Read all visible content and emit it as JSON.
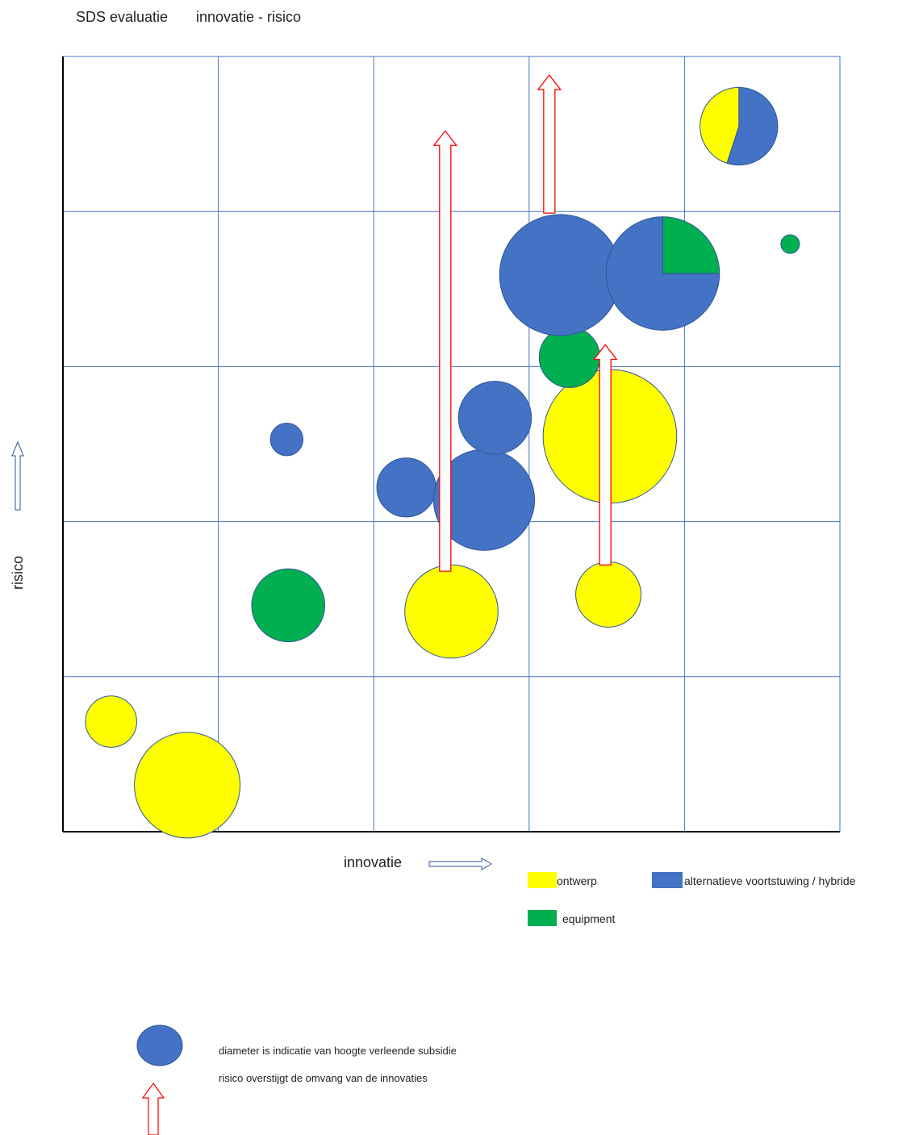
{
  "chart_data": {
    "type": "scatter",
    "subtype": "bubble",
    "title": "SDS evaluatie",
    "subtitle": "innovatie - risico",
    "xlabel": "innovatie",
    "ylabel": "risico",
    "xlim": [
      0,
      5
    ],
    "ylim": [
      0,
      5
    ],
    "grid": true,
    "colors": {
      "ontwerp": "#FFFF00",
      "alternatieve voortstuwing / hybride": "#4472C4",
      "equipment": "#00B050",
      "grid": "#4472C4",
      "arrow": "#FF0000",
      "axis": "#000000"
    },
    "legend": {
      "placement": "bottom-right",
      "entries": [
        {
          "name": "ontwerp",
          "color": "#FFFF00"
        },
        {
          "name": "alternatieve voortstuwing / hybride",
          "color": "#4472C4"
        },
        {
          "name": "equipment",
          "color": "#00B050"
        }
      ]
    },
    "bubbles": [
      {
        "x": 0.31,
        "y": 0.71,
        "diameter": 0.33,
        "category": "ontwerp"
      },
      {
        "x": 0.8,
        "y": 0.3,
        "diameter": 0.68,
        "category": "ontwerp"
      },
      {
        "x": 1.45,
        "y": 1.46,
        "diameter": 0.47,
        "category": "equipment"
      },
      {
        "x": 1.44,
        "y": 2.53,
        "diameter": 0.21,
        "category": "alternatieve voortstuwing / hybride"
      },
      {
        "x": 2.21,
        "y": 2.22,
        "diameter": 0.38,
        "category": "alternatieve voortstuwing / hybride"
      },
      {
        "x": 2.71,
        "y": 2.14,
        "diameter": 0.65,
        "category": "alternatieve voortstuwing / hybride"
      },
      {
        "x": 2.78,
        "y": 2.67,
        "diameter": 0.47,
        "category": "alternatieve voortstuwing / hybride"
      },
      {
        "x": 2.5,
        "y": 1.42,
        "diameter": 0.6,
        "category": "ontwerp"
      },
      {
        "x": 3.51,
        "y": 1.53,
        "diameter": 0.42,
        "category": "ontwerp"
      },
      {
        "x": 3.52,
        "y": 2.55,
        "diameter": 0.86,
        "category": "ontwerp"
      },
      {
        "x": 3.26,
        "y": 3.06,
        "diameter": 0.39,
        "category": "equipment"
      },
      {
        "x": 3.2,
        "y": 3.59,
        "diameter": 0.78,
        "category": "alternatieve voortstuwing / hybride"
      },
      {
        "x": 4.68,
        "y": 3.79,
        "diameter": 0.12,
        "category": "equipment"
      },
      {
        "x": 3.86,
        "y": 3.6,
        "diameter": 0.73,
        "category": "pie",
        "slices": [
          {
            "category": "equipment",
            "fraction": 0.25
          },
          {
            "category": "alternatieve voortstuwing / hybride",
            "fraction": 0.75
          }
        ]
      },
      {
        "x": 4.35,
        "y": 4.55,
        "diameter": 0.5,
        "category": "pie",
        "slices": [
          {
            "category": "alternatieve voortstuwing / hybride",
            "fraction": 0.55
          },
          {
            "category": "ontwerp",
            "fraction": 0.45
          }
        ]
      }
    ],
    "arrows": [
      {
        "x": 2.46,
        "y_from": 1.68,
        "y_to": 4.52
      },
      {
        "x": 3.13,
        "y_from": 3.99,
        "y_to": 4.88
      },
      {
        "x": 3.49,
        "y_from": 1.72,
        "y_to": 3.14
      }
    ],
    "notes": [
      {
        "symbol": "bubble",
        "text": "diameter is indicatie van hoogte verleende subsidie"
      },
      {
        "symbol": "arrow",
        "text": "risico overstijgt de omvang van de innovaties"
      }
    ]
  }
}
